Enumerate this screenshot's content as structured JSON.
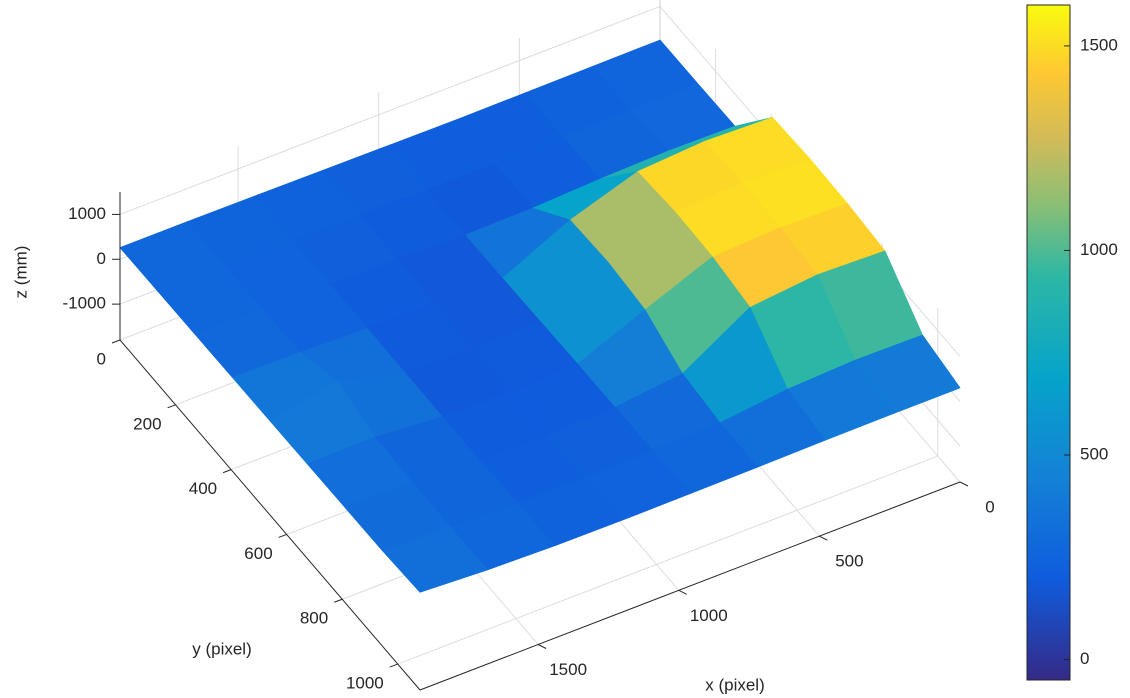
{
  "chart_data": {
    "type": "surface",
    "xlabel": "x (pixel)",
    "ylabel": "y (pixel)",
    "zlabel": "z (mm)",
    "x": [
      0,
      240,
      480,
      720,
      960,
      1200,
      1440,
      1680,
      1920
    ],
    "y": [
      0,
      135,
      270,
      405,
      540,
      675,
      810,
      945,
      1080
    ],
    "z": [
      [
        250,
        240,
        230,
        220,
        230,
        240,
        250,
        260,
        260
      ],
      [
        260,
        250,
        220,
        200,
        200,
        220,
        240,
        260,
        270
      ],
      [
        280,
        300,
        260,
        190,
        170,
        200,
        230,
        260,
        280
      ],
      [
        1450,
        1500,
        1400,
        900,
        180,
        180,
        220,
        270,
        290
      ],
      [
        1500,
        1550,
        1480,
        950,
        200,
        170,
        210,
        600,
        300
      ],
      [
        1480,
        1520,
        1450,
        850,
        220,
        180,
        200,
        330,
        310
      ],
      [
        1400,
        1450,
        1300,
        400,
        230,
        200,
        210,
        300,
        320
      ],
      [
        500,
        520,
        450,
        280,
        240,
        220,
        230,
        280,
        330
      ],
      [
        300,
        300,
        290,
        270,
        260,
        250,
        260,
        300,
        380
      ]
    ],
    "xlim": [
      0,
      1920
    ],
    "ylim": [
      0,
      1080
    ],
    "zlim": [
      -1800,
      1500
    ],
    "xticks": [
      0,
      500,
      1000,
      1500
    ],
    "yticks": [
      0,
      200,
      400,
      600,
      800,
      1000
    ],
    "zticks": [
      -1000,
      0,
      1000
    ],
    "colormap": "parula",
    "clim": [
      -50,
      1600
    ],
    "colorbar_ticks": [
      0,
      500,
      1000,
      1500
    ],
    "grid": true
  }
}
